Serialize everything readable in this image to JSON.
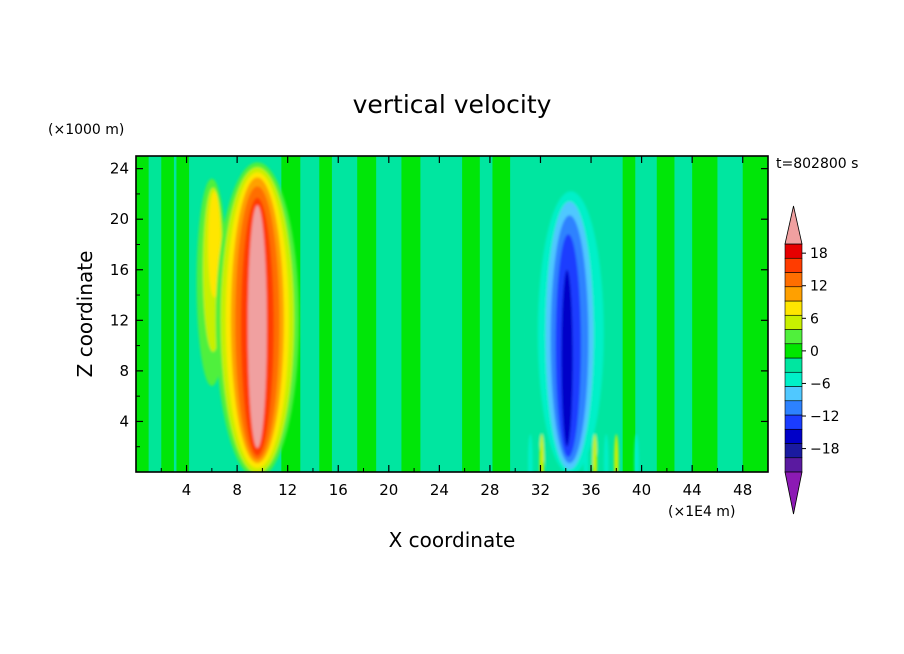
{
  "chart_data": {
    "type": "heatmap",
    "title": "vertical velocity",
    "xlabel": "X coordinate",
    "ylabel": "Z coordinate",
    "x_unit": "(×1E4 m)",
    "y_unit": "(×1000 m)",
    "time_label": "t=802800 s",
    "xlim": [
      0,
      50
    ],
    "ylim": [
      0,
      25
    ],
    "x_ticks": [
      4,
      8,
      12,
      16,
      20,
      24,
      28,
      32,
      36,
      40,
      44,
      48
    ],
    "y_ticks": [
      4,
      8,
      12,
      16,
      20,
      24
    ],
    "x_tick_labels": [
      "4",
      "8",
      "12",
      "16",
      "20",
      "24",
      "28",
      "32",
      "36",
      "40",
      "44",
      "48"
    ],
    "y_tick_labels": [
      "4",
      "8",
      "12",
      "16",
      "20",
      "24"
    ],
    "colorbar": {
      "levels": [
        -21,
        -18,
        -15,
        -12,
        -9,
        -6,
        -3,
        0,
        3,
        6,
        9,
        12,
        15,
        18,
        21
      ],
      "tick_values": [
        -18,
        -12,
        -6,
        0,
        6,
        12,
        18
      ],
      "tick_labels": [
        "−18",
        "−12",
        "−6",
        "0",
        "6",
        "12",
        "18"
      ],
      "colors": [
        "#5a1aa0",
        "#1a1aa0",
        "#0000c8",
        "#1a3cff",
        "#2d82ff",
        "#50c8ff",
        "#00f0c8",
        "#00e6a0",
        "#00e600",
        "#50f03c",
        "#c8f000",
        "#ffe600",
        "#ffa000",
        "#ff6e00",
        "#ff3c00",
        "#e60000"
      ],
      "under_color": "#8c1ab4",
      "over_color": "#f0a0a0"
    },
    "features": [
      {
        "name": "updraft core",
        "x": 9.6,
        "z_min": 0,
        "z_max": 24,
        "peak_w": 21
      },
      {
        "name": "secondary updraft",
        "x": 6,
        "z_min": 7,
        "z_max": 23,
        "peak_w": 8
      },
      {
        "name": "downdraft core",
        "x": 34.2,
        "z_min": 0,
        "z_max": 21.5,
        "peak_w": -18
      }
    ]
  }
}
